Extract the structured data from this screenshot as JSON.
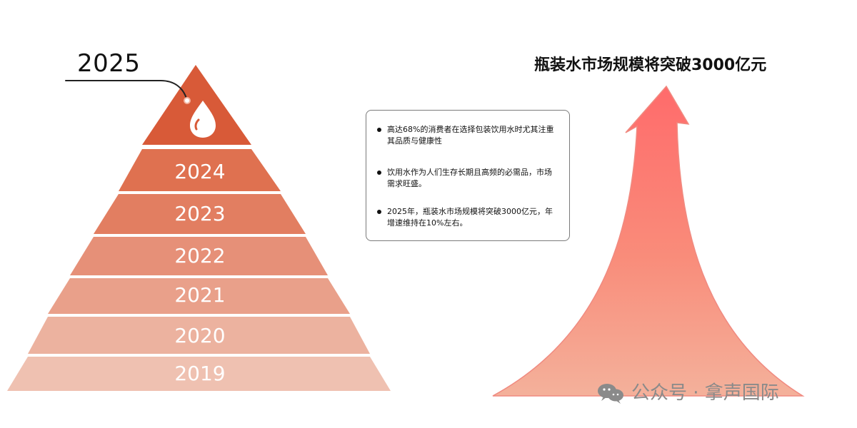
{
  "pyramid": {
    "top_year": "2025",
    "layers": [
      "2024",
      "2023",
      "2022",
      "2021",
      "2020",
      "2019"
    ]
  },
  "info_box": {
    "items": [
      "高达68%的消费者在选择包装饮用水时尤其注重其品质与健康性",
      "饮用水作为人们生存长期且高频的必需品，市场需求旺盛。",
      "2025年，瓶装水市场规模将突破3000亿元，年增速维持在10%左右。"
    ]
  },
  "right_panel": {
    "title": "瓶装水市场规模将突破3000亿元"
  },
  "watermark": {
    "text": "公众号 · 拿声国际"
  },
  "colors": {
    "top_layer": "#d85a38",
    "layer_1": "#df7150",
    "layer_2": "#e27e61",
    "layer_3": "#e69078",
    "layer_4": "#e9a08a",
    "layer_5": "#ecb29f",
    "layer_6": "#efc1b1",
    "arrow_top": "#ff6b6b",
    "arrow_bottom": "#f4b19b",
    "watermark": "#8a8a8a"
  },
  "icons": {
    "top_icon": "water-drop-icon",
    "watermark_icon": "wechat-icon"
  }
}
